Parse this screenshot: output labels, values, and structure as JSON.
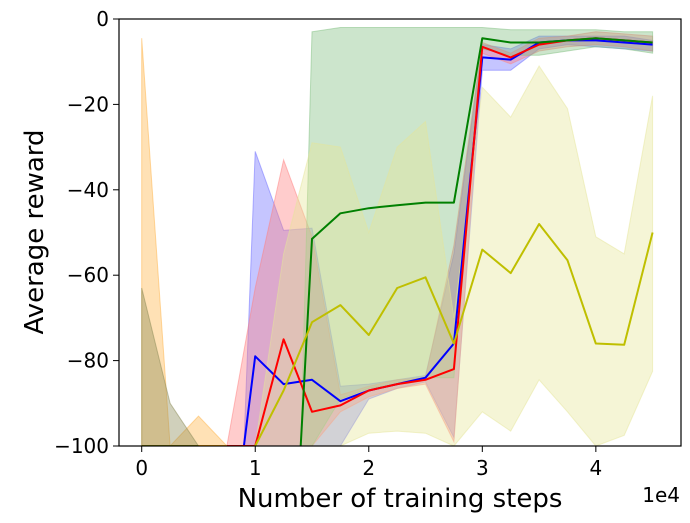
{
  "chart_data": {
    "type": "line",
    "title": "",
    "xlabel": "Number of training steps",
    "ylabel": "Average reward",
    "x_offset_label": "1e4",
    "xlim": [
      -0.2,
      4.75
    ],
    "ylim": [
      -100,
      0
    ],
    "x_ticks": [
      0,
      1,
      2,
      3,
      4
    ],
    "x_tick_labels": [
      "0",
      "1",
      "2",
      "3",
      "4"
    ],
    "y_ticks": [
      0,
      -20,
      -40,
      -60,
      -80,
      -100
    ],
    "y_tick_labels": [
      "0",
      "−20",
      "−40",
      "−60",
      "−80",
      "−100"
    ],
    "grid": false,
    "legend": "none",
    "series": [
      {
        "color": "#0000ff",
        "band_color": "#6e6eff",
        "x": [
          0.9,
          1.0,
          1.25,
          1.5,
          1.75,
          2.0,
          2.25,
          2.5,
          2.75,
          3.0,
          3.25,
          3.5,
          3.75,
          4.0,
          4.25,
          4.5
        ],
        "y": [
          -100,
          -79,
          -85.5,
          -84.5,
          -89.5,
          -87.0,
          -85.5,
          -84.0,
          -76.0,
          -9.0,
          -9.5,
          -5.5,
          -5.0,
          -5.0,
          -5.5,
          -6.0
        ],
        "upper": [
          -100,
          -31,
          -49.5,
          -49,
          -86,
          -85.5,
          -84.5,
          -83.5,
          -55,
          -6,
          -7,
          -4,
          -4,
          -4,
          -4,
          -5
        ],
        "lower": [
          -100,
          -100,
          -100,
          -100,
          -100,
          -89,
          -86.5,
          -85,
          -98,
          -12,
          -12,
          -7,
          -6,
          -6.5,
          -7,
          -7.5
        ]
      },
      {
        "color": "#ff0000",
        "band_color": "#ff7f7f",
        "x": [
          0.75,
          1.0,
          1.25,
          1.5,
          1.75,
          2.0,
          2.25,
          2.5,
          2.75,
          3.0,
          3.25,
          3.5,
          3.75,
          4.0,
          4.25,
          4.5
        ],
        "y": [
          -100,
          -100,
          -75,
          -92,
          -90.5,
          -87.0,
          -85.5,
          -84.5,
          -82.0,
          -6.5,
          -9.0,
          -6.0,
          -5.0,
          -4.5,
          -5.0,
          -5.5
        ],
        "upper": [
          -100,
          -63,
          -33,
          -51,
          -88,
          -86,
          -84.5,
          -84,
          -53,
          -5.5,
          -8,
          -4.5,
          -4,
          -3,
          -3.5,
          -4
        ],
        "lower": [
          -100,
          -100,
          -100,
          -100,
          -92,
          -88.5,
          -86.5,
          -85.5,
          -99,
          -8,
          -10.5,
          -7.5,
          -6.5,
          -6,
          -6.5,
          -7.5
        ]
      },
      {
        "color": "#008000",
        "band_color": "#7fbf7f",
        "x": [
          1.4,
          1.5,
          1.75,
          2.0,
          2.25,
          2.5,
          2.75,
          3.0,
          3.25,
          3.5,
          3.75,
          4.0,
          4.25,
          4.5
        ],
        "y": [
          -100,
          -51.5,
          -45.5,
          -44.3,
          -43.6,
          -43.0,
          -43.0,
          -4.5,
          -5.5,
          -5.5,
          -5.0,
          -4.5,
          -5.0,
          -5.5
        ],
        "upper": [
          -100,
          -3,
          -2,
          -2,
          -2,
          -2,
          -2,
          -2,
          -2.5,
          -2.5,
          -2.5,
          -2.5,
          -3,
          -3
        ],
        "lower": [
          -100,
          -100,
          -89,
          -86.5,
          -85.5,
          -84,
          -84,
          -7,
          -8.5,
          -8.5,
          -7.5,
          -6.5,
          -7,
          -8
        ]
      },
      {
        "color": "#bfbf00",
        "band_color": "#e5e599",
        "x": [
          1.0,
          1.25,
          1.5,
          1.75,
          2.0,
          2.25,
          2.5,
          2.75,
          3.0,
          3.25,
          3.5,
          3.75,
          4.0,
          4.25,
          4.5
        ],
        "y": [
          -100,
          -87,
          -71.0,
          -67.0,
          -74.0,
          -63.0,
          -60.5,
          -76.0,
          -54.0,
          -59.5,
          -48.0,
          -56.5,
          -76.0,
          -76.3,
          -50.0
        ],
        "upper": [
          -100,
          -55,
          -29,
          -30,
          -50,
          -30,
          -24,
          -70,
          -16,
          -23,
          -11,
          -21,
          -51,
          -55,
          -18
        ],
        "lower": [
          -100,
          -100,
          -100,
          -100,
          -97,
          -96.5,
          -97,
          -100,
          -92,
          -96.5,
          -84.5,
          -92,
          -100,
          -97.5,
          -82.5
        ]
      },
      {
        "color": "#ffa500",
        "band_color": "#ffb347",
        "x": [
          0.0,
          0.25,
          0.5,
          0.75
        ],
        "y": [
          -100,
          -100,
          -100,
          -100
        ],
        "upper": [
          -4.5,
          -100,
          -93,
          -100
        ],
        "lower": [
          -100,
          -100,
          -100,
          -100
        ]
      },
      {
        "color": "#808000",
        "band_color": "#8a8a55",
        "x": [
          0.0,
          0.25,
          0.5
        ],
        "y": [
          -100,
          -100,
          -100
        ],
        "upper": [
          -63,
          -90,
          -100
        ],
        "lower": [
          -100,
          -100,
          -100
        ]
      }
    ]
  }
}
